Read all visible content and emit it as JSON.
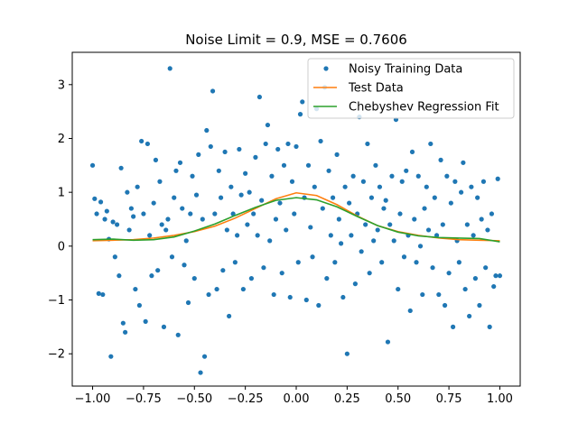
{
  "chart_data": {
    "type": "scatter",
    "title": "Noise Limit = 0.9, MSE = 0.7606",
    "xlabel": "",
    "ylabel": "",
    "xlim": [
      -1.1,
      1.1
    ],
    "ylim": [
      -2.6,
      3.6
    ],
    "x_ticks": [
      -1.0,
      -0.75,
      -0.5,
      -0.25,
      0.0,
      0.25,
      0.5,
      0.75,
      1.0
    ],
    "x_tick_labels": [
      "−1.00",
      "−0.75",
      "−0.50",
      "−0.25",
      "0.00",
      "0.25",
      "0.50",
      "0.75",
      "1.00"
    ],
    "y_ticks": [
      -2,
      -1,
      0,
      1,
      2,
      3
    ],
    "y_tick_labels": [
      "−2",
      "−1",
      "0",
      "1",
      "2",
      "3"
    ],
    "grid": false,
    "legend_position": "top-right",
    "legend": [
      {
        "label": "Noisy Training Data",
        "kind": "marker",
        "color": "#1f77b4"
      },
      {
        "label": "Test Data",
        "kind": "line",
        "color": "#ff7f0e"
      },
      {
        "label": "Chebyshev Regression Fit",
        "kind": "line",
        "color": "#2ca02c"
      }
    ],
    "series": [
      {
        "name": "Noisy Training Data",
        "type": "scatter",
        "color": "#1f77b4",
        "points": [
          [
            -1.0,
            1.5
          ],
          [
            -0.99,
            0.88
          ],
          [
            -0.98,
            0.6
          ],
          [
            -0.97,
            -0.88
          ],
          [
            -0.96,
            0.82
          ],
          [
            -0.95,
            -0.9
          ],
          [
            -0.94,
            0.5
          ],
          [
            -0.93,
            0.65
          ],
          [
            -0.92,
            0.13
          ],
          [
            -0.91,
            -2.05
          ],
          [
            -0.9,
            0.45
          ],
          [
            -0.89,
            -0.2
          ],
          [
            -0.88,
            0.4
          ],
          [
            -0.87,
            -0.55
          ],
          [
            -0.86,
            1.45
          ],
          [
            -0.85,
            -1.43
          ],
          [
            -0.84,
            -1.6
          ],
          [
            -0.83,
            1.0
          ],
          [
            -0.82,
            0.3
          ],
          [
            -0.81,
            0.7
          ],
          [
            -0.8,
            0.55
          ],
          [
            -0.79,
            -0.8
          ],
          [
            -0.78,
            1.1
          ],
          [
            -0.77,
            -1.1
          ],
          [
            -0.76,
            1.95
          ],
          [
            -0.75,
            0.6
          ],
          [
            -0.74,
            -1.4
          ],
          [
            -0.73,
            1.9
          ],
          [
            -0.72,
            0.2
          ],
          [
            -0.71,
            -0.55
          ],
          [
            -0.7,
            0.8
          ],
          [
            -0.69,
            1.6
          ],
          [
            -0.68,
            -0.45
          ],
          [
            -0.67,
            1.2
          ],
          [
            -0.66,
            0.4
          ],
          [
            -0.65,
            -1.5
          ],
          [
            -0.64,
            0.3
          ],
          [
            -0.63,
            0.5
          ],
          [
            -0.62,
            3.3
          ],
          [
            -0.61,
            -0.2
          ],
          [
            -0.6,
            0.9
          ],
          [
            -0.59,
            1.4
          ],
          [
            -0.58,
            -1.65
          ],
          [
            -0.57,
            1.55
          ],
          [
            -0.56,
            0.7
          ],
          [
            -0.55,
            -0.35
          ],
          [
            -0.54,
            0.1
          ],
          [
            -0.53,
            -1.05
          ],
          [
            -0.52,
            0.6
          ],
          [
            -0.51,
            1.3
          ],
          [
            -0.5,
            -0.6
          ],
          [
            -0.49,
            0.95
          ],
          [
            -0.48,
            1.7
          ],
          [
            -0.47,
            -2.35
          ],
          [
            -0.46,
            0.5
          ],
          [
            -0.45,
            -2.05
          ],
          [
            -0.44,
            2.15
          ],
          [
            -0.43,
            -0.9
          ],
          [
            -0.42,
            1.85
          ],
          [
            -0.41,
            2.88
          ],
          [
            -0.4,
            0.6
          ],
          [
            -0.39,
            -0.8
          ],
          [
            -0.38,
            1.4
          ],
          [
            -0.37,
            0.9
          ],
          [
            -0.36,
            -0.45
          ],
          [
            -0.35,
            1.75
          ],
          [
            -0.34,
            0.3
          ],
          [
            -0.33,
            -1.3
          ],
          [
            -0.32,
            1.1
          ],
          [
            -0.31,
            0.6
          ],
          [
            -0.3,
            -0.3
          ],
          [
            -0.29,
            0.2
          ],
          [
            -0.28,
            1.8
          ],
          [
            -0.27,
            0.95
          ],
          [
            -0.26,
            -0.8
          ],
          [
            -0.25,
            1.35
          ],
          [
            -0.24,
            0.4
          ],
          [
            -0.23,
            1.0
          ],
          [
            -0.22,
            -0.6
          ],
          [
            -0.21,
            0.6
          ],
          [
            -0.2,
            1.65
          ],
          [
            -0.19,
            0.2
          ],
          [
            -0.18,
            2.77
          ],
          [
            -0.17,
            0.85
          ],
          [
            -0.16,
            -0.4
          ],
          [
            -0.15,
            1.9
          ],
          [
            -0.14,
            2.25
          ],
          [
            -0.13,
            0.1
          ],
          [
            -0.12,
            1.3
          ],
          [
            -0.11,
            -0.9
          ],
          [
            -0.1,
            0.5
          ],
          [
            -0.09,
            1.8
          ],
          [
            -0.08,
            0.8
          ],
          [
            -0.07,
            -0.5
          ],
          [
            -0.06,
            1.5
          ],
          [
            -0.05,
            0.3
          ],
          [
            -0.04,
            1.9
          ],
          [
            -0.03,
            -0.95
          ],
          [
            -0.02,
            1.2
          ],
          [
            -0.01,
            0.6
          ],
          [
            0.0,
            1.85
          ],
          [
            0.01,
            -0.3
          ],
          [
            0.02,
            2.45
          ],
          [
            0.03,
            2.68
          ],
          [
            0.04,
            0.9
          ],
          [
            0.05,
            -1.0
          ],
          [
            0.06,
            1.5
          ],
          [
            0.07,
            0.35
          ],
          [
            0.08,
            -0.2
          ],
          [
            0.09,
            1.1
          ],
          [
            0.1,
            2.55
          ],
          [
            0.11,
            -1.1
          ],
          [
            0.12,
            1.95
          ],
          [
            0.13,
            0.7
          ],
          [
            0.14,
            2.95
          ],
          [
            0.15,
            -0.6
          ],
          [
            0.16,
            1.4
          ],
          [
            0.17,
            0.2
          ],
          [
            0.18,
            0.9
          ],
          [
            0.19,
            -0.3
          ],
          [
            0.2,
            1.7
          ],
          [
            0.21,
            0.5
          ],
          [
            0.22,
            0.05
          ],
          [
            0.23,
            -0.95
          ],
          [
            0.24,
            1.1
          ],
          [
            0.25,
            -2.0
          ],
          [
            0.26,
            0.8
          ],
          [
            0.27,
            0.2
          ],
          [
            0.28,
            1.3
          ],
          [
            0.29,
            -0.7
          ],
          [
            0.3,
            0.6
          ],
          [
            0.31,
            2.4
          ],
          [
            0.32,
            -0.1
          ],
          [
            0.33,
            1.2
          ],
          [
            0.34,
            0.4
          ],
          [
            0.35,
            1.9
          ],
          [
            0.36,
            -0.5
          ],
          [
            0.37,
            0.9
          ],
          [
            0.38,
            0.1
          ],
          [
            0.39,
            1.5
          ],
          [
            0.4,
            0.3
          ],
          [
            0.41,
            1.1
          ],
          [
            0.42,
            -0.3
          ],
          [
            0.43,
            0.7
          ],
          [
            0.44,
            0.85
          ],
          [
            0.45,
            -1.78
          ],
          [
            0.46,
            0.4
          ],
          [
            0.47,
            1.3
          ],
          [
            0.48,
            0.1
          ],
          [
            0.49,
            2.35
          ],
          [
            0.5,
            -0.8
          ],
          [
            0.51,
            0.6
          ],
          [
            0.52,
            1.2
          ],
          [
            0.53,
            -0.2
          ],
          [
            0.54,
            1.4
          ],
          [
            0.55,
            0.2
          ],
          [
            0.56,
            -1.2
          ],
          [
            0.57,
            1.75
          ],
          [
            0.58,
            0.5
          ],
          [
            0.59,
            -0.3
          ],
          [
            0.6,
            1.3
          ],
          [
            0.61,
            0.0
          ],
          [
            0.62,
            -0.9
          ],
          [
            0.63,
            0.7
          ],
          [
            0.64,
            1.1
          ],
          [
            0.65,
            0.3
          ],
          [
            0.66,
            1.9
          ],
          [
            0.67,
            -0.4
          ],
          [
            0.68,
            0.9
          ],
          [
            0.69,
            0.2
          ],
          [
            0.7,
            -0.9
          ],
          [
            0.71,
            1.6
          ],
          [
            0.72,
            0.4
          ],
          [
            0.73,
            -1.1
          ],
          [
            0.74,
            1.3
          ],
          [
            0.75,
            -0.5
          ],
          [
            0.76,
            0.8
          ],
          [
            0.77,
            -1.5
          ],
          [
            0.78,
            1.2
          ],
          [
            0.79,
            0.1
          ],
          [
            0.8,
            -0.3
          ],
          [
            0.81,
            1.0
          ],
          [
            0.82,
            1.55
          ],
          [
            0.83,
            -0.8
          ],
          [
            0.84,
            0.4
          ],
          [
            0.85,
            -1.3
          ],
          [
            0.86,
            1.1
          ],
          [
            0.87,
            0.2
          ],
          [
            0.88,
            -0.6
          ],
          [
            0.89,
            0.9
          ],
          [
            0.9,
            -1.1
          ],
          [
            0.91,
            0.5
          ],
          [
            0.92,
            1.2
          ],
          [
            0.93,
            -0.4
          ],
          [
            0.94,
            0.3
          ],
          [
            0.95,
            -1.5
          ],
          [
            0.96,
            0.6
          ],
          [
            0.97,
            -0.75
          ],
          [
            0.98,
            -0.55
          ],
          [
            0.99,
            1.25
          ],
          [
            1.0,
            -0.55
          ]
        ]
      },
      {
        "name": "Test Data",
        "type": "line",
        "color": "#ff7f0e",
        "points": [
          [
            -1.0,
            0.1
          ],
          [
            -0.9,
            0.11
          ],
          [
            -0.8,
            0.12
          ],
          [
            -0.7,
            0.15
          ],
          [
            -0.6,
            0.2
          ],
          [
            -0.5,
            0.27
          ],
          [
            -0.4,
            0.37
          ],
          [
            -0.3,
            0.52
          ],
          [
            -0.2,
            0.7
          ],
          [
            -0.1,
            0.88
          ],
          [
            0.0,
            0.99
          ],
          [
            0.1,
            0.94
          ],
          [
            0.2,
            0.77
          ],
          [
            0.3,
            0.56
          ],
          [
            0.4,
            0.38
          ],
          [
            0.5,
            0.27
          ],
          [
            0.6,
            0.2
          ],
          [
            0.7,
            0.15
          ],
          [
            0.8,
            0.12
          ],
          [
            0.9,
            0.11
          ],
          [
            1.0,
            0.1
          ]
        ]
      },
      {
        "name": "Chebyshev Regression Fit",
        "type": "line",
        "color": "#2ca02c",
        "points": [
          [
            -1.0,
            0.12
          ],
          [
            -0.9,
            0.13
          ],
          [
            -0.8,
            0.11
          ],
          [
            -0.7,
            0.12
          ],
          [
            -0.6,
            0.17
          ],
          [
            -0.5,
            0.28
          ],
          [
            -0.4,
            0.41
          ],
          [
            -0.3,
            0.57
          ],
          [
            -0.2,
            0.72
          ],
          [
            -0.1,
            0.85
          ],
          [
            0.0,
            0.9
          ],
          [
            0.1,
            0.86
          ],
          [
            0.2,
            0.73
          ],
          [
            0.3,
            0.55
          ],
          [
            0.4,
            0.38
          ],
          [
            0.5,
            0.26
          ],
          [
            0.6,
            0.19
          ],
          [
            0.7,
            0.16
          ],
          [
            0.8,
            0.15
          ],
          [
            0.9,
            0.14
          ],
          [
            1.0,
            0.08
          ]
        ]
      }
    ]
  }
}
